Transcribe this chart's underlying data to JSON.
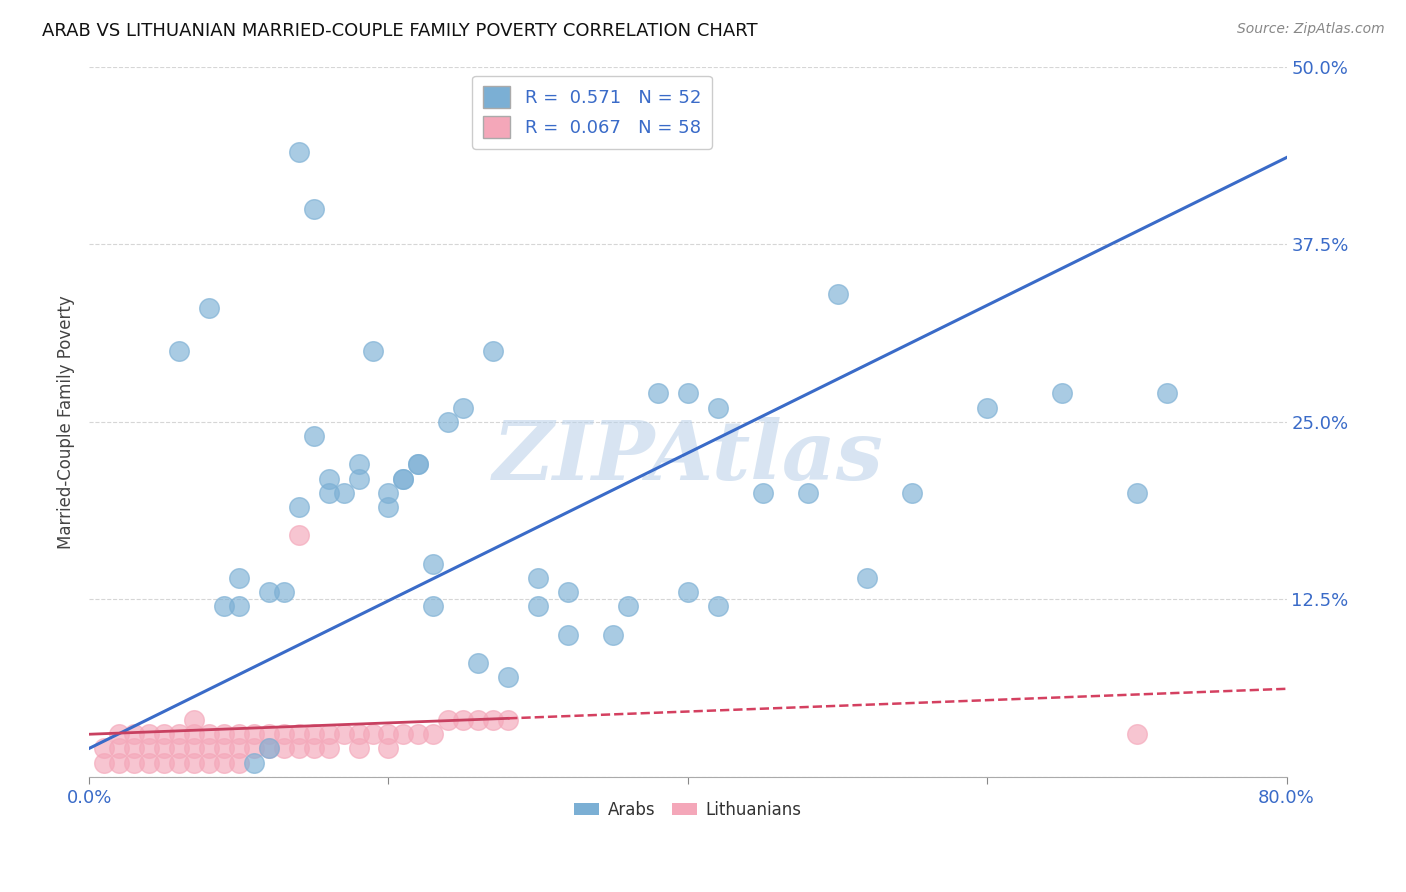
{
  "title": "ARAB VS LITHUANIAN MARRIED-COUPLE FAMILY POVERTY CORRELATION CHART",
  "source": "Source: ZipAtlas.com",
  "ylabel": "Married-Couple Family Poverty",
  "xlim": [
    0.0,
    0.8
  ],
  "ylim": [
    0.0,
    0.5
  ],
  "xticks": [
    0.0,
    0.2,
    0.4,
    0.6,
    0.8
  ],
  "xtick_labels": [
    "0.0%",
    "",
    "",
    "",
    "80.0%"
  ],
  "yticks": [
    0.0,
    0.125,
    0.25,
    0.375,
    0.5
  ],
  "ytick_labels": [
    "",
    "12.5%",
    "25.0%",
    "37.5%",
    "50.0%"
  ],
  "arab_color": "#7bafd4",
  "lith_color": "#f4a7b9",
  "arab_line_color": "#3a6bc8",
  "lith_line_color": "#d44060",
  "lith_line_solid_color": "#c84060",
  "watermark": "ZIPAtlas",
  "watermark_color": "#b8cfe8",
  "arab_R": "0.571",
  "arab_N": "52",
  "lith_R": "0.067",
  "lith_N": "58",
  "arab_x": [
    0.14,
    0.15,
    0.06,
    0.08,
    0.1,
    0.1,
    0.11,
    0.12,
    0.15,
    0.16,
    0.17,
    0.18,
    0.19,
    0.2,
    0.21,
    0.22,
    0.23,
    0.24,
    0.25,
    0.26,
    0.27,
    0.28,
    0.3,
    0.32,
    0.35,
    0.38,
    0.4,
    0.42,
    0.45,
    0.48,
    0.5,
    0.52,
    0.55,
    0.6,
    0.65,
    0.7,
    0.72,
    0.14,
    0.16,
    0.18,
    0.2,
    0.21,
    0.22,
    0.23,
    0.09,
    0.12,
    0.13,
    0.3,
    0.32,
    0.36,
    0.4,
    0.42
  ],
  "arab_y": [
    0.44,
    0.4,
    0.3,
    0.33,
    0.14,
    0.12,
    0.01,
    0.02,
    0.24,
    0.21,
    0.2,
    0.21,
    0.3,
    0.2,
    0.21,
    0.22,
    0.15,
    0.25,
    0.26,
    0.08,
    0.3,
    0.07,
    0.14,
    0.1,
    0.1,
    0.27,
    0.27,
    0.26,
    0.2,
    0.2,
    0.34,
    0.14,
    0.2,
    0.26,
    0.27,
    0.2,
    0.27,
    0.19,
    0.2,
    0.22,
    0.19,
    0.21,
    0.22,
    0.12,
    0.12,
    0.13,
    0.13,
    0.12,
    0.13,
    0.12,
    0.13,
    0.12
  ],
  "lith_x": [
    0.01,
    0.01,
    0.02,
    0.02,
    0.02,
    0.03,
    0.03,
    0.03,
    0.04,
    0.04,
    0.04,
    0.05,
    0.05,
    0.05,
    0.06,
    0.06,
    0.06,
    0.07,
    0.07,
    0.07,
    0.07,
    0.08,
    0.08,
    0.08,
    0.09,
    0.09,
    0.09,
    0.1,
    0.1,
    0.1,
    0.11,
    0.11,
    0.12,
    0.12,
    0.13,
    0.13,
    0.14,
    0.14,
    0.15,
    0.15,
    0.16,
    0.16,
    0.17,
    0.18,
    0.18,
    0.19,
    0.2,
    0.2,
    0.21,
    0.22,
    0.23,
    0.24,
    0.25,
    0.26,
    0.27,
    0.28,
    0.14,
    0.7
  ],
  "lith_y": [
    0.01,
    0.02,
    0.01,
    0.02,
    0.03,
    0.01,
    0.02,
    0.03,
    0.01,
    0.02,
    0.03,
    0.01,
    0.02,
    0.03,
    0.01,
    0.02,
    0.03,
    0.01,
    0.02,
    0.03,
    0.04,
    0.01,
    0.02,
    0.03,
    0.01,
    0.02,
    0.03,
    0.01,
    0.02,
    0.03,
    0.02,
    0.03,
    0.02,
    0.03,
    0.02,
    0.03,
    0.02,
    0.03,
    0.02,
    0.03,
    0.02,
    0.03,
    0.03,
    0.02,
    0.03,
    0.03,
    0.02,
    0.03,
    0.03,
    0.03,
    0.03,
    0.04,
    0.04,
    0.04,
    0.04,
    0.04,
    0.17,
    0.03
  ]
}
